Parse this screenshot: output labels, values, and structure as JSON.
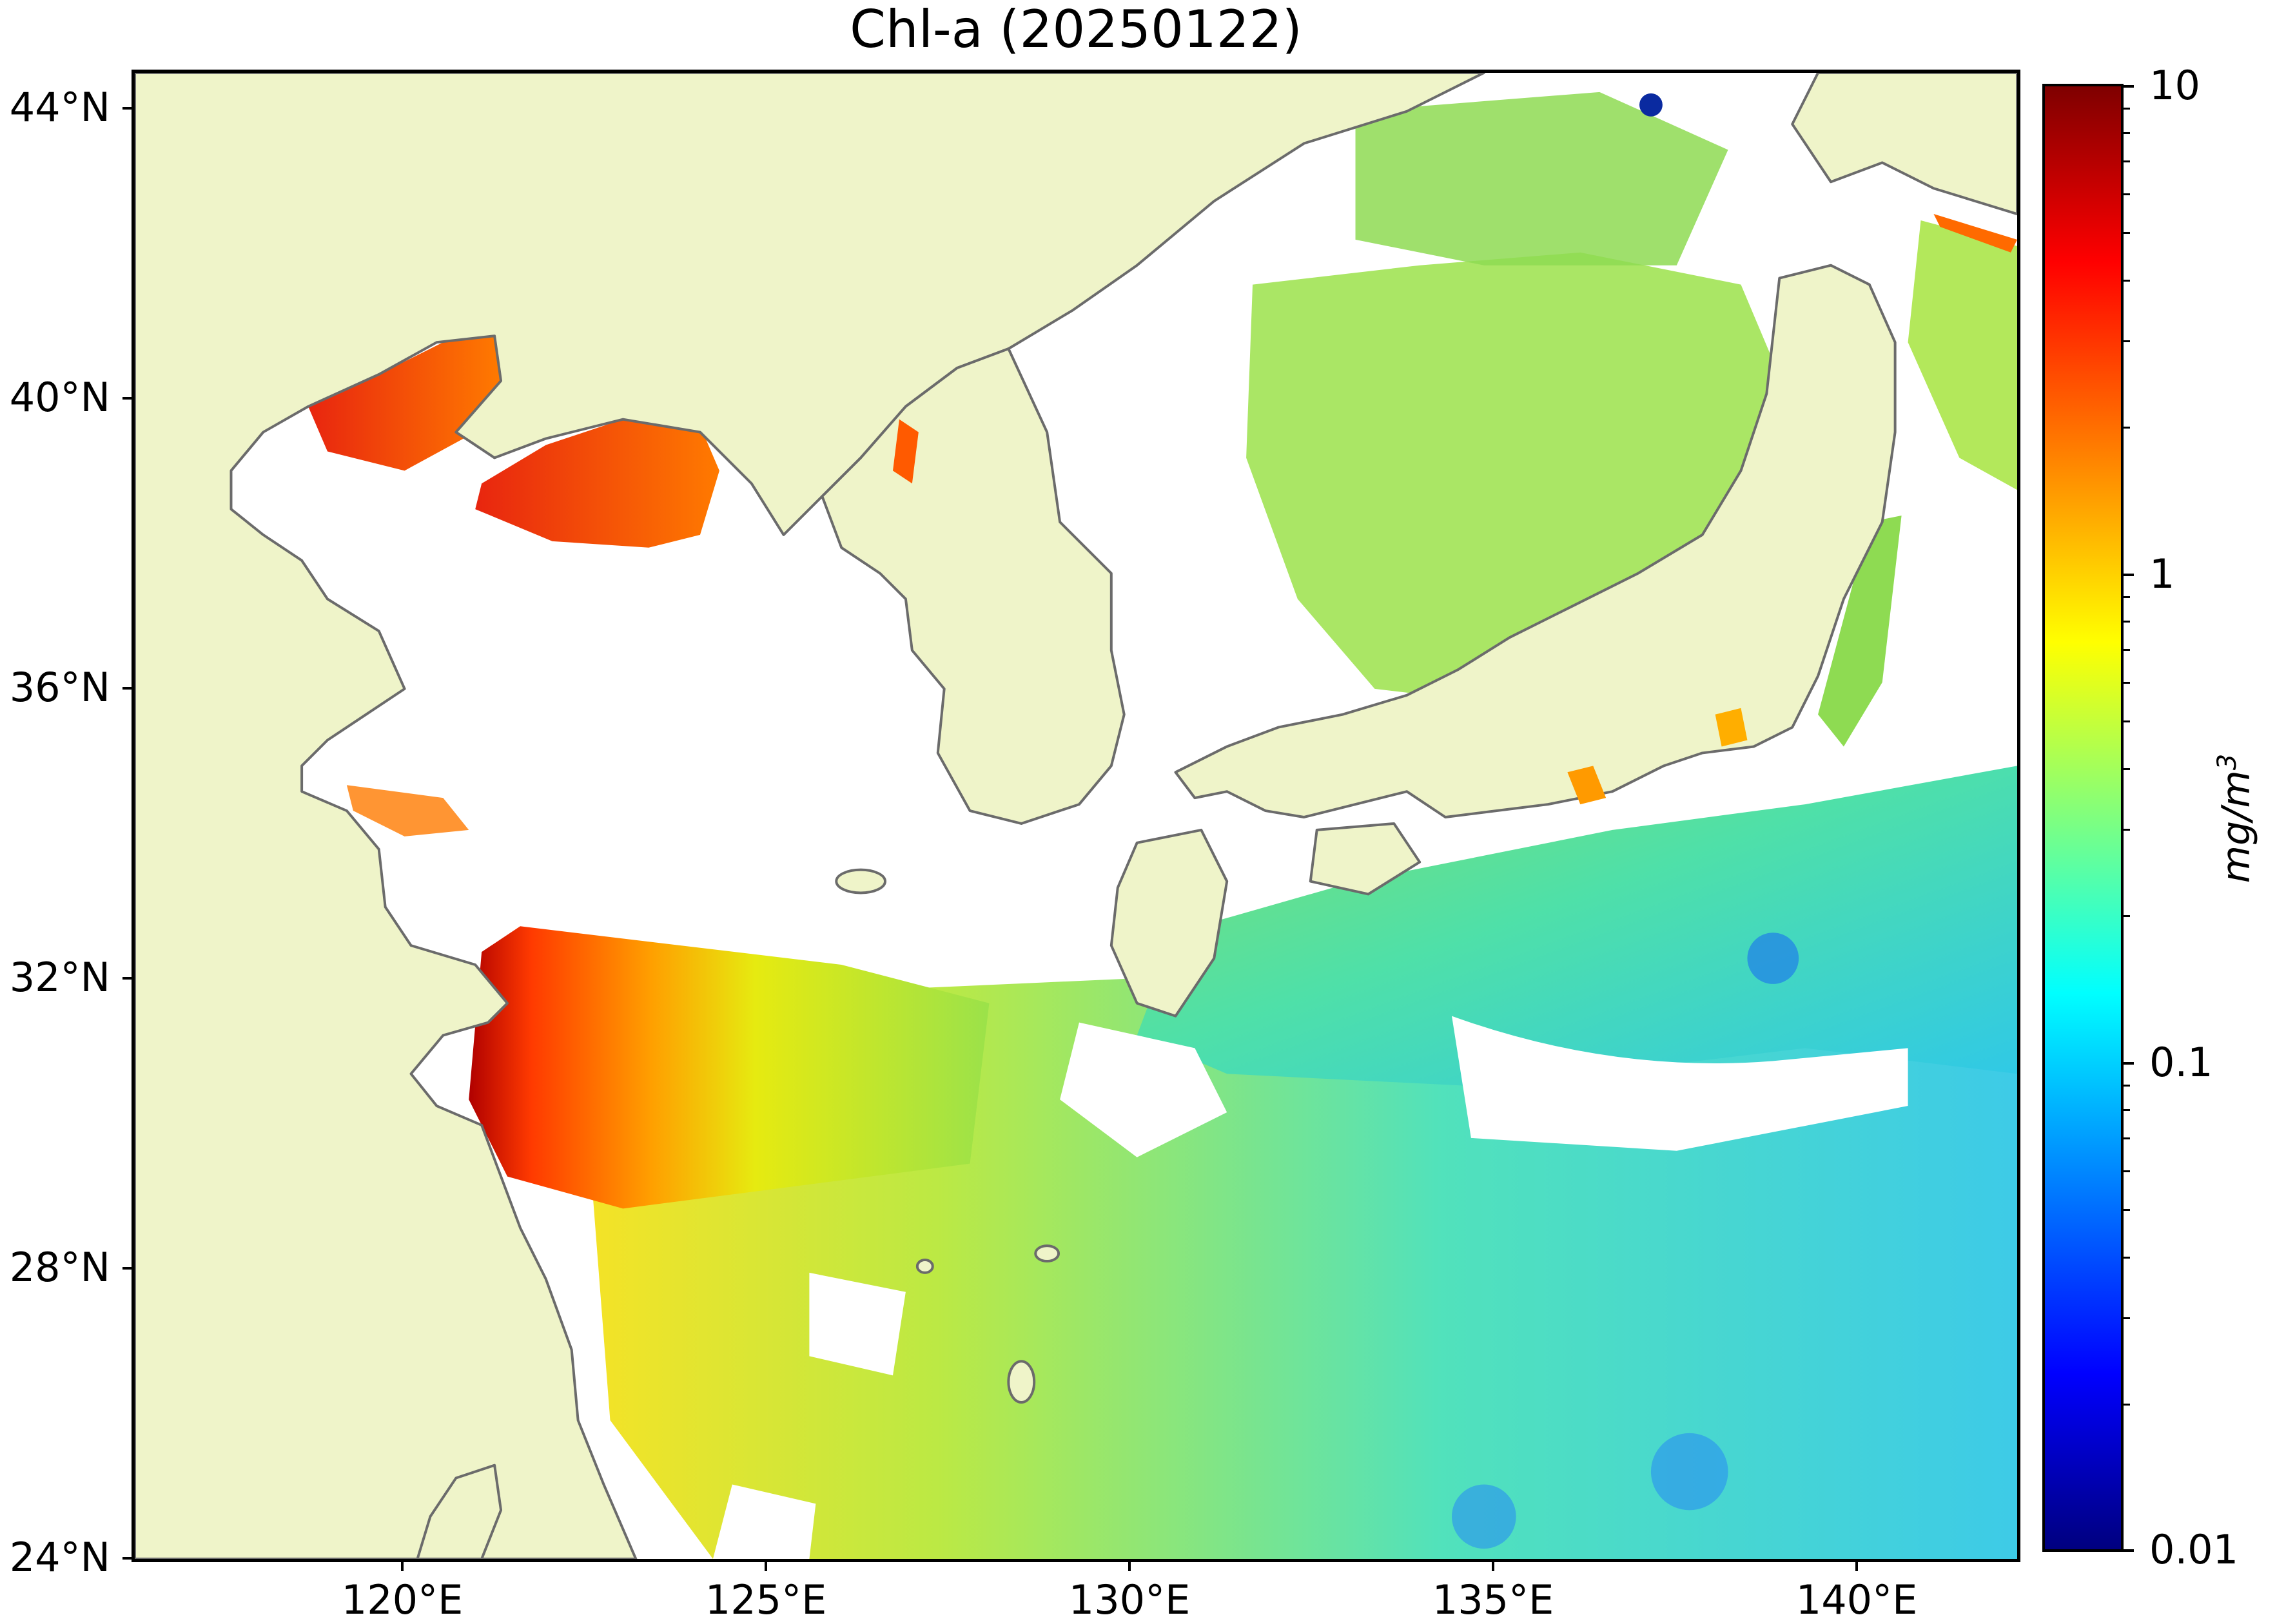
{
  "title": "Chl-a (20250122)",
  "map": {
    "region": "East China Sea / Sea of Japan / Northwest Pacific",
    "lat_ticks": [
      "44°N",
      "40°N",
      "36°N",
      "32°N",
      "28°N",
      "24°N"
    ],
    "lon_ticks": [
      "120°E",
      "125°E",
      "130°E",
      "135°E",
      "140°E"
    ],
    "colors": {
      "land": "#eff4c9",
      "no_data": "#ffffff",
      "coastline": "#6b6b6b"
    }
  },
  "colorbar": {
    "colormap": "jet",
    "scale": "log",
    "range": [
      0.01,
      10
    ],
    "tick_labels": [
      "10",
      "1",
      "0.1",
      "0.01"
    ],
    "unit_base": "mg/m",
    "unit_exp": "3"
  }
}
